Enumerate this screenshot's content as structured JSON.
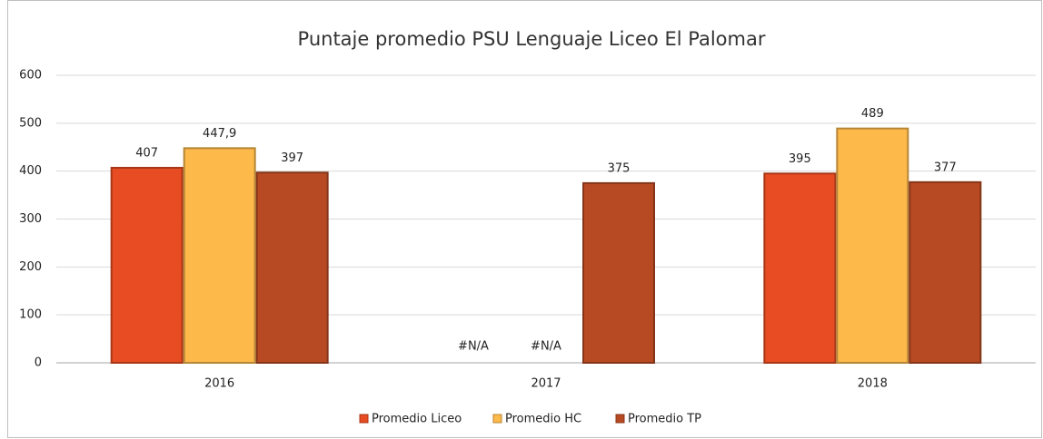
{
  "chart_data": {
    "type": "bar",
    "title": "Puntaje promedio PSU Lenguaje Liceo El Palomar",
    "categories": [
      "2016",
      "2017",
      "2018"
    ],
    "series": [
      {
        "name": "Promedio Liceo",
        "color": "#e84c22",
        "values": [
          407,
          null,
          395
        ],
        "value_labels": [
          "407",
          "#N/A",
          "395"
        ]
      },
      {
        "name": "Promedio HC",
        "color": "#fdb94a",
        "values": [
          447.9,
          null,
          489
        ],
        "value_labels": [
          "447,9",
          "#N/A",
          "489"
        ]
      },
      {
        "name": "Promedio TP",
        "color": "#b84a23",
        "values": [
          397,
          375,
          377
        ]
      }
    ],
    "ylim": [
      0,
      600
    ],
    "yticks": [
      0,
      100,
      200,
      300,
      400,
      500,
      600
    ],
    "grid": true,
    "legend": "bottom"
  }
}
